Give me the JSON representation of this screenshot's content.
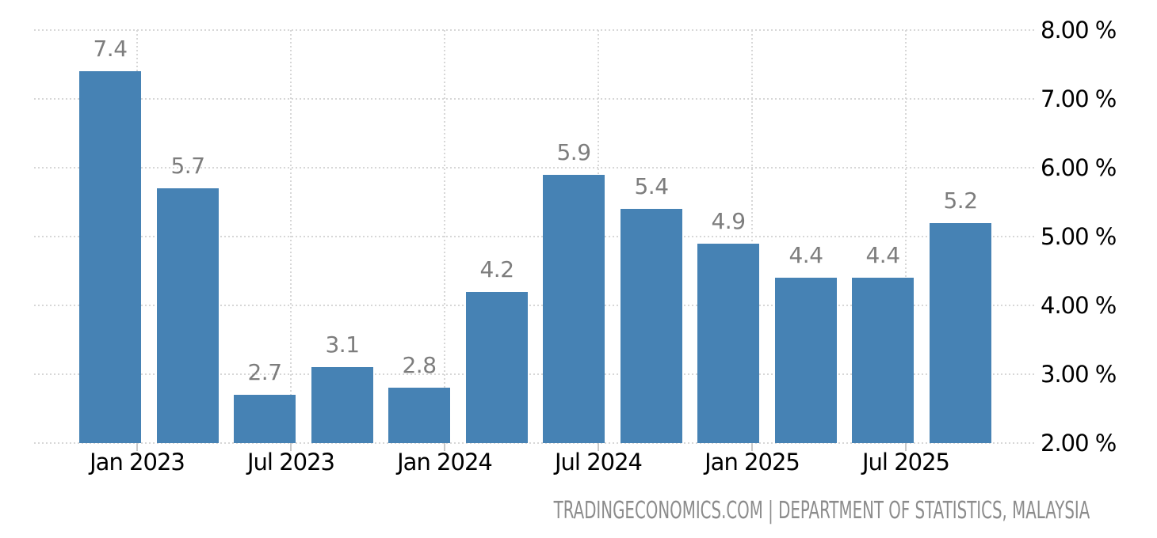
{
  "chart_data": {
    "type": "bar",
    "title": "",
    "attribution": "TRADINGECONOMICS.COM | DEPARTMENT OF STATISTICS, MALAYSIA",
    "values": [
      7.4,
      5.7,
      2.7,
      3.1,
      2.8,
      4.2,
      5.9,
      5.4,
      4.9,
      4.4,
      4.4,
      5.2
    ],
    "bar_labels": [
      "7.4",
      "5.7",
      "2.7",
      "3.1",
      "2.8",
      "4.2",
      "5.9",
      "5.4",
      "4.9",
      "4.4",
      "4.4",
      "5.2"
    ],
    "x_tick_labels": [
      "Jan 2023",
      "Jul 2023",
      "Jan 2024",
      "Jul 2024",
      "Jan 2025",
      "Jul 2025"
    ],
    "y_tick_labels": [
      "8.00 %",
      "7.00 %",
      "6.00 %",
      "5.00 %",
      "4.00 %",
      "3.00 %",
      "2.00 %"
    ],
    "y_tick_values": [
      8,
      7,
      6,
      5,
      4,
      3,
      2
    ],
    "ylim": [
      2,
      8
    ],
    "xlabel": "",
    "ylabel": "",
    "y_axis_side": "right",
    "bars_per_x_tick": 2,
    "legend": "none",
    "grid_style": "dotted",
    "bar_value_label_position": "above",
    "colors": {
      "bar": "#4682b4",
      "bar_value_label": "#7d7d7d",
      "axis_label": "#000000",
      "gridline": "#d7d7d7",
      "tick": "#c9c9c9",
      "attribution": "#8c8c8c",
      "background": "#ffffff"
    }
  }
}
